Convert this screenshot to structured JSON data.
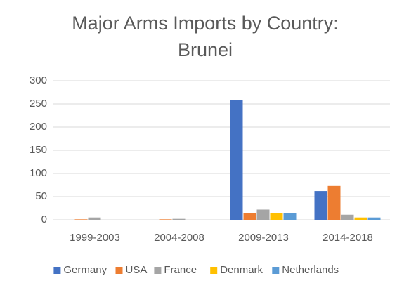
{
  "chart_data": {
    "type": "bar",
    "title": "Major Arms Imports by Country: Brunei",
    "categories": [
      "1999-2003",
      "2004-2008",
      "2009-2013",
      "2014-2018"
    ],
    "series": [
      {
        "name": "Germany",
        "color": "#4472c4",
        "values": [
          0,
          0,
          259,
          62
        ]
      },
      {
        "name": "USA",
        "color": "#ed7d31",
        "values": [
          1,
          1,
          14,
          73
        ]
      },
      {
        "name": "France",
        "color": "#a5a5a5",
        "values": [
          5,
          2,
          22,
          11
        ]
      },
      {
        "name": "Denmark",
        "color": "#ffc000",
        "values": [
          0,
          0,
          14,
          5
        ]
      },
      {
        "name": "Netherlands",
        "color": "#5b9bd5",
        "values": [
          0,
          0,
          14,
          5
        ]
      }
    ],
    "ylim": [
      0,
      300
    ],
    "yticks": [
      0,
      50,
      100,
      150,
      200,
      250,
      300
    ],
    "grid": true,
    "legend": "bottom"
  }
}
